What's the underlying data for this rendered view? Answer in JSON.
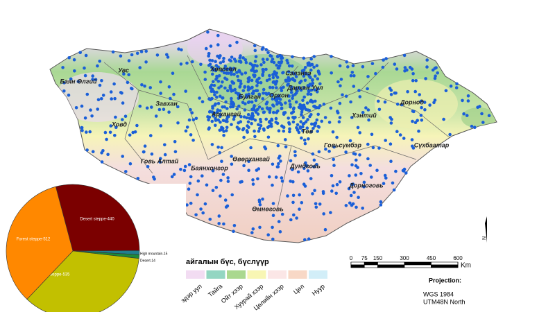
{
  "map": {
    "regions": [
      "Увс",
      "Баян Өлгий",
      "Ховд",
      "Завхан",
      "Говь Алтай",
      "Хөвсгөл",
      "Архангай",
      "Булган",
      "Орхон",
      "Сэлэнгэ",
      "Дархан Уул",
      "Төв",
      "Хэнтий",
      "Дорнод",
      "Сүхбаатар",
      "Говьсүмбэр",
      "Баянхонгор",
      "Өвөрхангай",
      "Дундговь",
      "Дорноговь",
      "Өмнөговь"
    ]
  },
  "chart_data": {
    "type": "pie",
    "categories": [
      "Desert steppe-440",
      "High mountain-15",
      "Desert-14",
      "Steppe-535",
      "Forest steppe-512"
    ],
    "values": [
      440,
      15,
      14,
      535,
      512
    ],
    "colors": [
      "#7b0000",
      "#1f7f8f",
      "#1d8a3a",
      "#c2c000",
      "#ff8800"
    ]
  },
  "legend": {
    "title": "айгалын бүс, бүслүүр",
    "items": [
      {
        "label": "эдэр уул",
        "color": "#f2dcf2"
      },
      {
        "label": "Тайга",
        "color": "#93d6c2"
      },
      {
        "label": "Ойт хээр",
        "color": "#aad88f"
      },
      {
        "label": "Хуурай хээр",
        "color": "#f8f6b4"
      },
      {
        "label": "Цөлийн хээр",
        "color": "#fbe6e6"
      },
      {
        "label": "Цөл",
        "color": "#f8d8c6"
      },
      {
        "label": "Нуур",
        "color": "#d2eef8"
      }
    ]
  },
  "scale": {
    "ticks": [
      0,
      75,
      150,
      300,
      450,
      600
    ],
    "unit": "Km"
  },
  "projection": {
    "title": "Projection:",
    "datum": "WGS 1984",
    "zone": "UTM48N North"
  },
  "north": "N"
}
